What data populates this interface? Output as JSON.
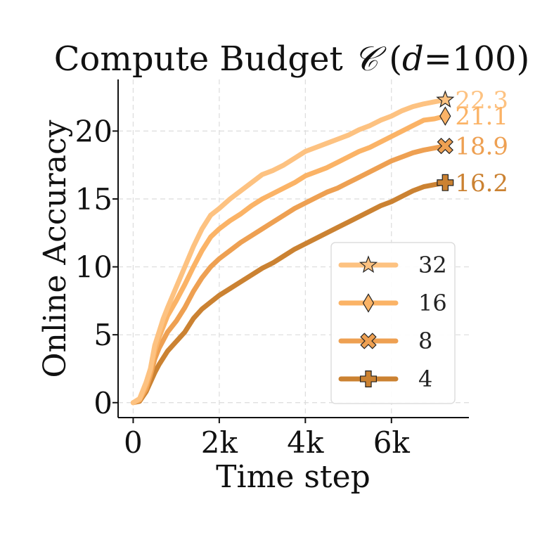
{
  "chart_data": {
    "type": "line",
    "title_main": "Compute Budget ",
    "title_symbol": "𝒞",
    "title_param": " (",
    "title_var": "d",
    "title_value": "=100)",
    "xlabel": "Time step",
    "ylabel": "Online Accuracy",
    "xlim": [
      -350,
      7800
    ],
    "ylim": [
      -1.1,
      23.8
    ],
    "xticks": [
      0,
      2000,
      4000,
      6000
    ],
    "xtick_labels": [
      "0",
      "2k",
      "4k",
      "6k"
    ],
    "yticks": [
      0,
      5,
      10,
      15,
      20
    ],
    "ytick_labels": [
      "0",
      "5",
      "10",
      "15",
      "20"
    ],
    "grid": true,
    "legend_position": "lower-right",
    "series": [
      {
        "name": "32",
        "color": "#fdc281",
        "marker": "star",
        "end_label": "22.3",
        "x": [
          0,
          150,
          300,
          400,
          500,
          600,
          700,
          800,
          1000,
          1200,
          1400,
          1600,
          1800,
          2000,
          2250,
          2500,
          2750,
          3000,
          3250,
          3500,
          3750,
          4000,
          4250,
          4500,
          4750,
          5000,
          5250,
          5500,
          5750,
          6000,
          6250,
          6500,
          6750,
          7000,
          7250
        ],
        "y": [
          0,
          0.3,
          1.5,
          2.5,
          4.2,
          5.2,
          6.2,
          7.0,
          8.5,
          10.0,
          11.5,
          12.8,
          13.8,
          14.3,
          15.0,
          15.6,
          16.2,
          16.8,
          17.1,
          17.5,
          18.0,
          18.5,
          18.8,
          19.1,
          19.4,
          19.7,
          20.1,
          20.4,
          20.8,
          21.1,
          21.5,
          21.8,
          22.0,
          22.15,
          22.3
        ]
      },
      {
        "name": "16",
        "color": "#fbb366",
        "marker": "diamond",
        "end_label": "21.1",
        "x": [
          0,
          150,
          300,
          400,
          500,
          600,
          700,
          800,
          1000,
          1200,
          1400,
          1600,
          1800,
          2000,
          2250,
          2500,
          2750,
          3000,
          3250,
          3500,
          3750,
          4000,
          4250,
          4500,
          4750,
          5000,
          5250,
          5500,
          5750,
          6000,
          6250,
          6500,
          6750,
          7000,
          7250
        ],
        "y": [
          0,
          0.2,
          1.3,
          2.3,
          3.8,
          4.8,
          5.6,
          6.4,
          7.5,
          8.7,
          10.0,
          11.2,
          12.2,
          12.8,
          13.4,
          13.9,
          14.5,
          15.0,
          15.4,
          15.8,
          16.2,
          16.7,
          17.0,
          17.3,
          17.7,
          18.1,
          18.5,
          18.8,
          19.2,
          19.6,
          20.0,
          20.4,
          20.8,
          20.9,
          21.1
        ]
      },
      {
        "name": "8",
        "color": "#eea052",
        "marker": "x",
        "end_label": "18.9",
        "x": [
          0,
          150,
          300,
          400,
          500,
          600,
          700,
          800,
          1000,
          1200,
          1400,
          1600,
          1800,
          2000,
          2250,
          2500,
          2750,
          3000,
          3250,
          3500,
          3750,
          4000,
          4250,
          4500,
          4750,
          5000,
          5250,
          5500,
          5750,
          6000,
          6250,
          6500,
          6750,
          7000,
          7250
        ],
        "y": [
          0,
          0.2,
          1.0,
          2.0,
          3.2,
          4.0,
          4.6,
          5.2,
          6.0,
          7.0,
          8.2,
          9.2,
          10.0,
          10.6,
          11.2,
          11.8,
          12.3,
          12.8,
          13.3,
          13.8,
          14.3,
          14.7,
          15.1,
          15.5,
          15.8,
          16.2,
          16.6,
          17.0,
          17.4,
          17.8,
          18.1,
          18.4,
          18.6,
          18.75,
          18.9
        ]
      },
      {
        "name": "4",
        "color": "#cb8232",
        "marker": "plus",
        "end_label": "16.2",
        "x": [
          0,
          150,
          300,
          400,
          500,
          600,
          700,
          800,
          1000,
          1200,
          1400,
          1600,
          1800,
          2000,
          2250,
          2500,
          2750,
          3000,
          3250,
          3500,
          3750,
          4000,
          4250,
          4500,
          4750,
          5000,
          5250,
          5500,
          5750,
          6000,
          6250,
          6500,
          6750,
          7000,
          7250
        ],
        "y": [
          0,
          0.1,
          0.8,
          1.5,
          2.2,
          2.8,
          3.3,
          3.8,
          4.5,
          5.2,
          6.2,
          6.9,
          7.4,
          7.9,
          8.4,
          8.9,
          9.4,
          9.9,
          10.3,
          10.8,
          11.3,
          11.7,
          12.1,
          12.5,
          12.9,
          13.3,
          13.7,
          14.1,
          14.5,
          14.8,
          15.2,
          15.6,
          15.9,
          16.05,
          16.2
        ]
      }
    ]
  }
}
